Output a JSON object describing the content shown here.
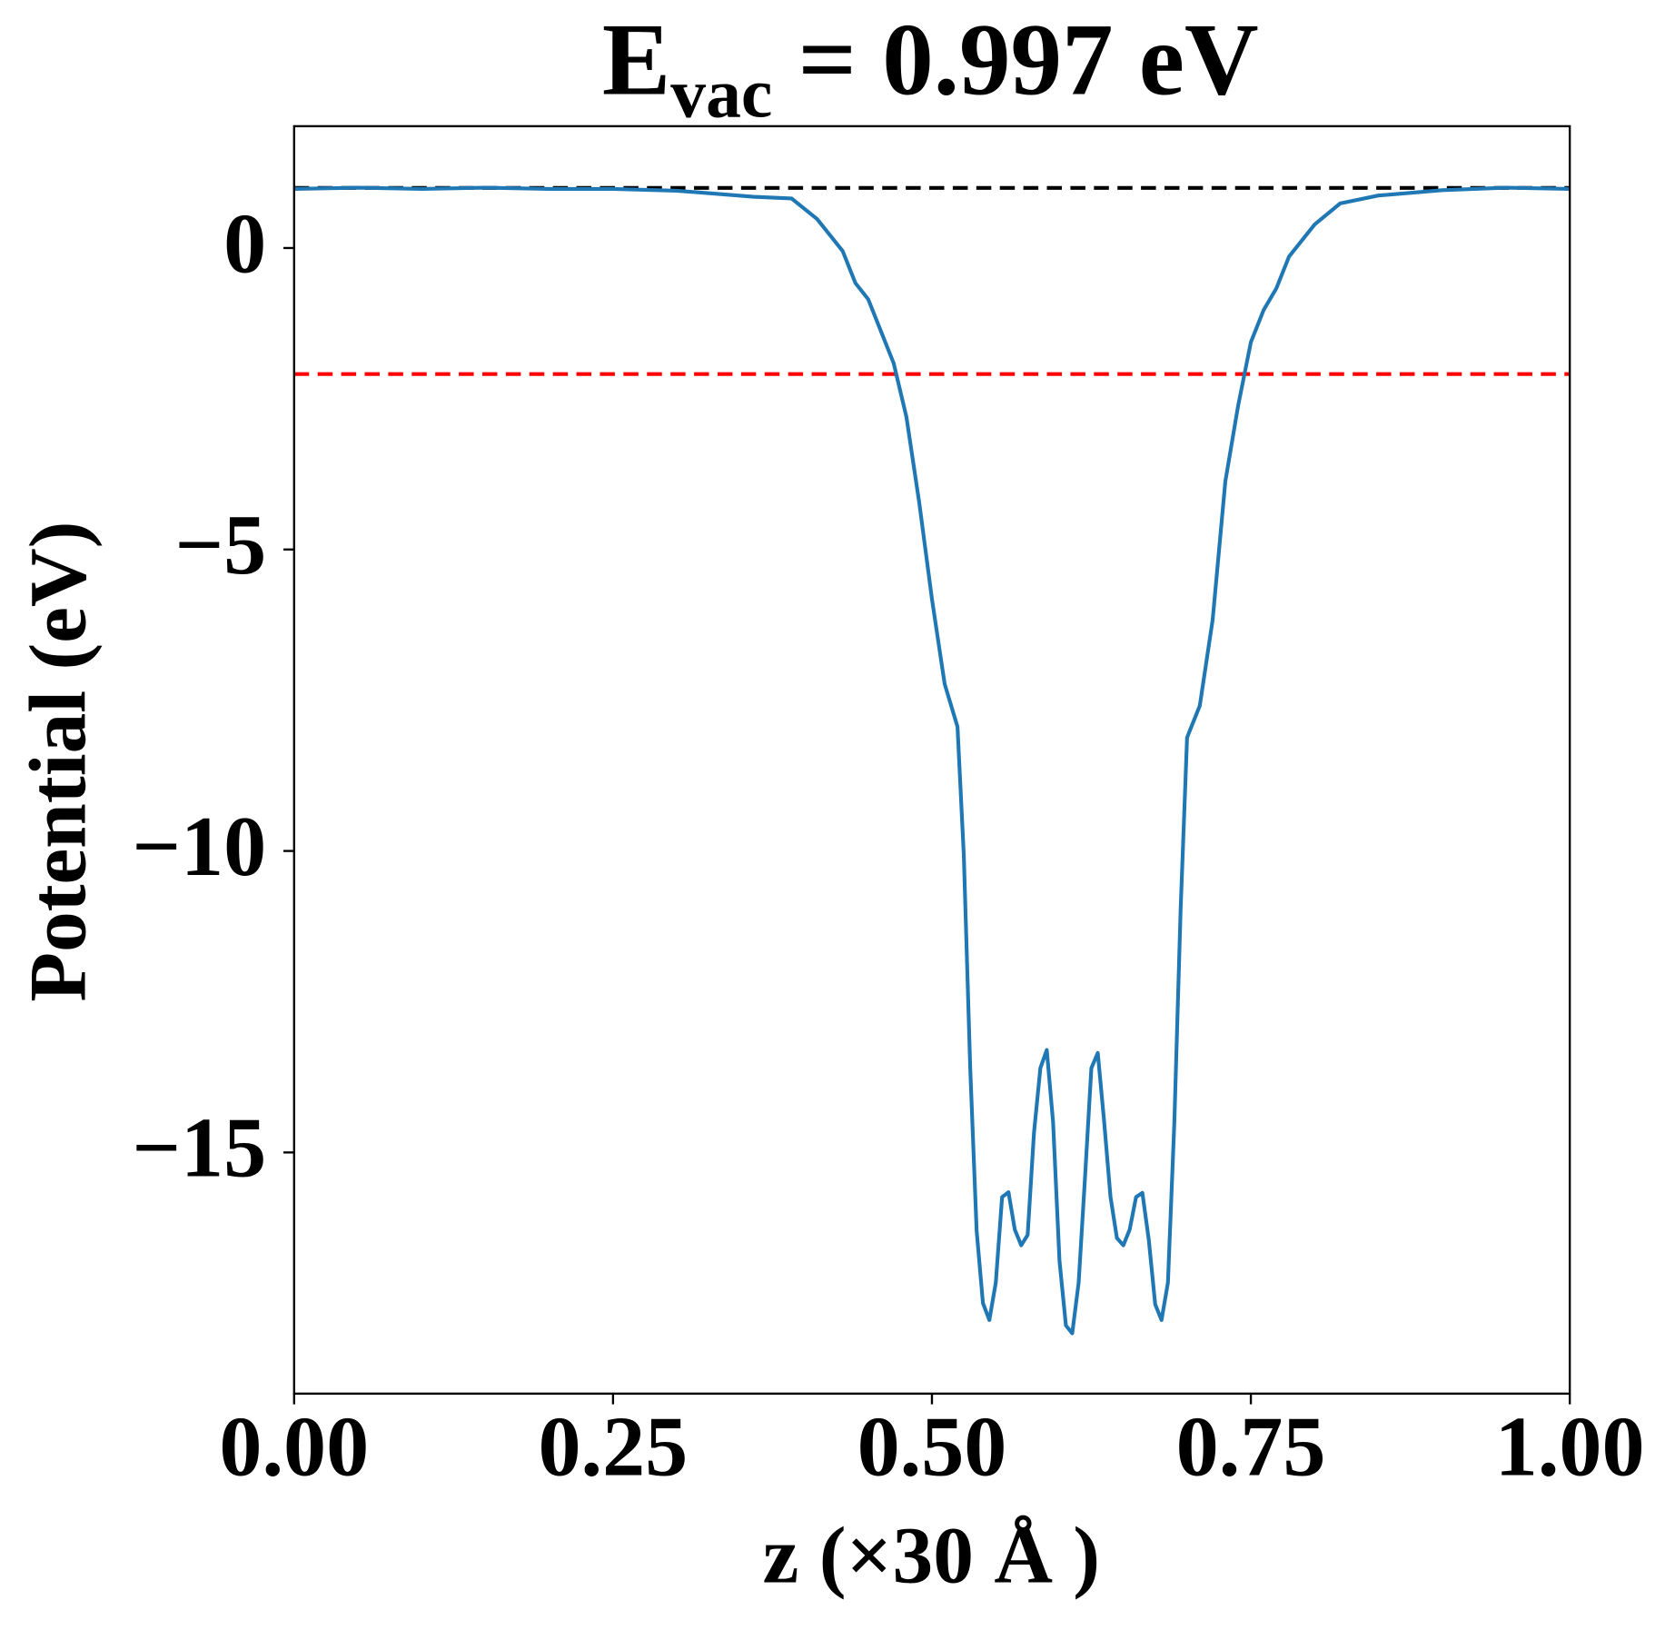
{
  "chart_data": {
    "type": "line",
    "title": {
      "text": "E",
      "subscript": "vac",
      "suffix": " = 0.997 eV"
    },
    "xlabel": "z (×30 Å )",
    "ylabel": "Potential (eV)",
    "xlim": [
      0,
      1
    ],
    "ylim": [
      -19,
      2.02
    ],
    "xticks": [
      {
        "value": 0,
        "label": "0.00"
      },
      {
        "value": 0.25,
        "label": "0.25"
      },
      {
        "value": 0.5,
        "label": "0.50"
      },
      {
        "value": 0.75,
        "label": "0.75"
      },
      {
        "value": 1,
        "label": "1.00"
      }
    ],
    "yticks": [
      0,
      {
        "value": -5,
        "label": "−5"
      },
      {
        "value": -10,
        "label": "−10"
      },
      {
        "value": -15,
        "label": "−15"
      }
    ],
    "hlines": [
      {
        "y": 0.997,
        "color": "#000000"
      },
      {
        "y": -2.09,
        "color": "#ff0000"
      }
    ],
    "series": [
      {
        "color": "#1f77b4",
        "x": [
          0,
          0.05,
          0.1,
          0.15,
          0.2,
          0.25,
          0.3,
          0.33,
          0.36,
          0.39,
          0.41,
          0.43,
          0.44,
          0.45,
          0.46,
          0.47,
          0.48,
          0.49,
          0.5,
          0.51,
          0.52,
          0.525,
          0.53,
          0.535,
          0.54,
          0.545,
          0.55,
          0.555,
          0.56,
          0.565,
          0.57,
          0.575,
          0.58,
          0.585,
          0.59,
          0.595,
          0.6,
          0.605,
          0.61,
          0.615,
          0.62,
          0.625,
          0.63,
          0.635,
          0.64,
          0.645,
          0.65,
          0.655,
          0.66,
          0.665,
          0.67,
          0.675,
          0.68,
          0.685,
          0.69,
          0.695,
          0.7,
          0.71,
          0.72,
          0.73,
          0.74,
          0.75,
          0.76,
          0.77,
          0.78,
          0.8,
          0.82,
          0.85,
          0.9,
          0.95,
          1
        ],
        "values": [
          0.98,
          1.0,
          0.98,
          1.0,
          0.98,
          0.98,
          0.95,
          0.9,
          0.85,
          0.82,
          0.48,
          -0.05,
          -0.58,
          -0.85,
          -1.38,
          -1.91,
          -2.8,
          -4.22,
          -5.82,
          -7.23,
          -7.94,
          -10.07,
          -13.6,
          -16.3,
          -17.5,
          -17.78,
          -17.16,
          -15.74,
          -15.66,
          -16.28,
          -16.54,
          -16.37,
          -14.68,
          -13.6,
          -13.3,
          -14.5,
          -16.8,
          -17.87,
          -18.0,
          -17.16,
          -15.4,
          -13.6,
          -13.35,
          -14.5,
          -15.74,
          -16.42,
          -16.54,
          -16.28,
          -15.74,
          -15.67,
          -16.45,
          -17.52,
          -17.78,
          -17.16,
          -14.5,
          -10.96,
          -8.12,
          -7.59,
          -6.17,
          -3.87,
          -2.62,
          -1.56,
          -1.03,
          -0.67,
          -0.14,
          0.39,
          0.74,
          0.87,
          0.96,
          1.0,
          0.98
        ]
      }
    ]
  }
}
